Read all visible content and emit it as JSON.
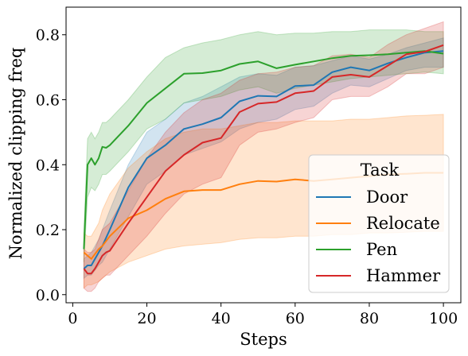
{
  "chart_data": {
    "type": "line",
    "xlabel": "Steps",
    "ylabel": "Normalized clipping freq",
    "xlim": [
      -1.8,
      104.7
    ],
    "ylim": [
      -0.025,
      0.885
    ],
    "xticks": [
      0,
      20,
      40,
      60,
      80,
      100
    ],
    "yticks": [
      0.0,
      0.2,
      0.4,
      0.6,
      0.8
    ],
    "xtick_labels": [
      "0",
      "20",
      "40",
      "60",
      "80",
      "100"
    ],
    "ytick_labels": [
      "0.0",
      "0.2",
      "0.4",
      "0.6",
      "0.8"
    ],
    "legend": {
      "title": "Task",
      "placement": "lower right"
    },
    "series": [
      {
        "name": "Door",
        "color": "#1f77b4",
        "x": [
          3,
          4,
          5,
          7,
          8,
          10,
          15,
          20,
          25,
          30,
          35,
          40,
          45,
          50,
          55,
          60,
          65,
          70,
          75,
          80,
          85,
          90,
          95,
          100
        ],
        "mean": [
          0.08,
          0.09,
          0.09,
          0.13,
          0.15,
          0.2,
          0.33,
          0.42,
          0.46,
          0.51,
          0.525,
          0.545,
          0.595,
          0.612,
          0.61,
          0.642,
          0.645,
          0.685,
          0.7,
          0.69,
          0.712,
          0.73,
          0.745,
          0.75
        ],
        "upper": [
          0.11,
          0.12,
          0.13,
          0.17,
          0.2,
          0.26,
          0.4,
          0.5,
          0.54,
          0.59,
          0.61,
          0.64,
          0.67,
          0.68,
          0.675,
          0.7,
          0.705,
          0.72,
          0.735,
          0.725,
          0.74,
          0.76,
          0.775,
          0.79
        ],
        "lower": [
          0.05,
          0.06,
          0.06,
          0.09,
          0.1,
          0.14,
          0.24,
          0.34,
          0.38,
          0.43,
          0.45,
          0.47,
          0.51,
          0.53,
          0.54,
          0.57,
          0.58,
          0.62,
          0.645,
          0.64,
          0.665,
          0.69,
          0.7,
          0.7
        ]
      },
      {
        "name": "Relocate",
        "color": "#ff7f0e",
        "x": [
          3,
          4,
          5,
          7,
          8,
          10,
          15,
          20,
          25,
          30,
          35,
          40,
          45,
          50,
          55,
          60,
          65,
          70,
          75,
          80,
          85,
          90,
          95,
          100
        ],
        "mean": [
          0.13,
          0.12,
          0.11,
          0.14,
          0.15,
          0.18,
          0.235,
          0.26,
          0.295,
          0.318,
          0.322,
          0.322,
          0.34,
          0.35,
          0.348,
          0.355,
          0.35,
          0.355,
          0.36,
          0.365,
          0.37,
          0.372,
          0.375,
          0.375
        ],
        "upper": [
          0.19,
          0.18,
          0.18,
          0.22,
          0.26,
          0.31,
          0.39,
          0.44,
          0.48,
          0.5,
          0.51,
          0.51,
          0.52,
          0.53,
          0.53,
          0.535,
          0.535,
          0.535,
          0.54,
          0.54,
          0.545,
          0.55,
          0.552,
          0.555
        ],
        "lower": [
          0.02,
          0.03,
          0.03,
          0.04,
          0.05,
          0.07,
          0.1,
          0.12,
          0.14,
          0.15,
          0.155,
          0.16,
          0.17,
          0.175,
          0.175,
          0.18,
          0.18,
          0.185,
          0.185,
          0.19,
          0.19,
          0.192,
          0.195,
          0.195
        ]
      },
      {
        "name": "Pen",
        "color": "#2ca02c",
        "x": [
          3,
          4,
          5,
          6,
          7,
          8,
          9,
          10,
          15,
          20,
          25,
          30,
          35,
          40,
          45,
          50,
          55,
          60,
          65,
          70,
          75,
          80,
          85,
          90,
          95,
          100
        ],
        "mean": [
          0.14,
          0.4,
          0.42,
          0.4,
          0.42,
          0.455,
          0.452,
          0.46,
          0.52,
          0.59,
          0.635,
          0.68,
          0.682,
          0.69,
          0.71,
          0.718,
          0.697,
          0.708,
          0.718,
          0.728,
          0.735,
          0.737,
          0.74,
          0.745,
          0.75,
          0.742
        ],
        "upper": [
          0.2,
          0.48,
          0.5,
          0.48,
          0.5,
          0.53,
          0.53,
          0.54,
          0.6,
          0.67,
          0.73,
          0.76,
          0.775,
          0.785,
          0.8,
          0.81,
          0.8,
          0.805,
          0.805,
          0.81,
          0.81,
          0.815,
          0.815,
          0.815,
          0.81,
          0.81
        ],
        "lower": [
          0.1,
          0.3,
          0.33,
          0.32,
          0.34,
          0.37,
          0.37,
          0.38,
          0.44,
          0.51,
          0.54,
          0.59,
          0.6,
          0.61,
          0.63,
          0.64,
          0.62,
          0.635,
          0.645,
          0.655,
          0.665,
          0.67,
          0.675,
          0.68,
          0.685,
          0.68
        ]
      },
      {
        "name": "Hammer",
        "color": "#d62728",
        "x": [
          3,
          4,
          5,
          6,
          7,
          8,
          9,
          10,
          15,
          20,
          25,
          30,
          35,
          40,
          45,
          50,
          55,
          60,
          65,
          70,
          75,
          80,
          85,
          90,
          95,
          100
        ],
        "mean": [
          0.08,
          0.065,
          0.065,
          0.08,
          0.1,
          0.12,
          0.13,
          0.135,
          0.22,
          0.3,
          0.38,
          0.43,
          0.468,
          0.482,
          0.562,
          0.588,
          0.593,
          0.62,
          0.627,
          0.67,
          0.677,
          0.67,
          0.705,
          0.74,
          0.748,
          0.768
        ],
        "upper": [
          0.14,
          0.13,
          0.13,
          0.14,
          0.17,
          0.2,
          0.21,
          0.22,
          0.32,
          0.42,
          0.5,
          0.56,
          0.6,
          0.62,
          0.66,
          0.68,
          0.685,
          0.7,
          0.705,
          0.735,
          0.74,
          0.73,
          0.77,
          0.8,
          0.82,
          0.84
        ],
        "lower": [
          0.02,
          0.01,
          0.01,
          0.02,
          0.04,
          0.05,
          0.06,
          0.06,
          0.12,
          0.18,
          0.25,
          0.31,
          0.34,
          0.36,
          0.46,
          0.5,
          0.51,
          0.53,
          0.545,
          0.6,
          0.61,
          0.61,
          0.64,
          0.68,
          0.68,
          0.7
        ]
      }
    ]
  }
}
